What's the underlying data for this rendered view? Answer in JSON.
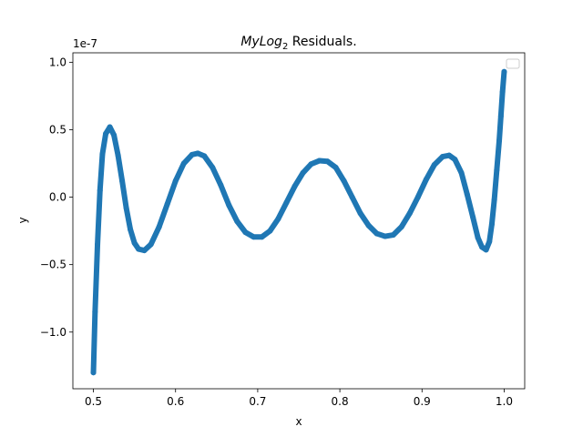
{
  "chart_data": {
    "type": "scatter",
    "title": {
      "italic": "MyLog",
      "subscript": "2",
      "rest": " Residuals."
    },
    "xlabel": "x",
    "ylabel": "y",
    "offset_text": "1e-7",
    "xlim": [
      0.475,
      1.025
    ],
    "ylim": [
      -1.42,
      1.07
    ],
    "y_scale_factor": 1e-07,
    "x_ticks": [
      {
        "value": 0.5,
        "label": "0.5"
      },
      {
        "value": 0.6,
        "label": "0.6"
      },
      {
        "value": 0.7,
        "label": "0.7"
      },
      {
        "value": 0.8,
        "label": "0.8"
      },
      {
        "value": 0.9,
        "label": "0.9"
      },
      {
        "value": 1.0,
        "label": "1.0"
      }
    ],
    "y_ticks": [
      {
        "value": -1.0,
        "label": "−1.0"
      },
      {
        "value": -0.5,
        "label": "−0.5"
      },
      {
        "value": 0.0,
        "label": "0.0"
      },
      {
        "value": 0.5,
        "label": "0.5"
      },
      {
        "value": 1.0,
        "label": "1.0"
      }
    ],
    "grid": false,
    "legend": {
      "placement": "top-right",
      "entries": []
    },
    "series": [
      {
        "color": "#1f77b4",
        "x": [
          0.5,
          0.502,
          0.505,
          0.508,
          0.511,
          0.515,
          0.52,
          0.525,
          0.53,
          0.535,
          0.54,
          0.545,
          0.55,
          0.555,
          0.562,
          0.57,
          0.58,
          0.59,
          0.6,
          0.61,
          0.62,
          0.627,
          0.635,
          0.645,
          0.655,
          0.665,
          0.675,
          0.685,
          0.695,
          0.705,
          0.715,
          0.725,
          0.735,
          0.745,
          0.755,
          0.765,
          0.775,
          0.785,
          0.795,
          0.805,
          0.815,
          0.825,
          0.835,
          0.845,
          0.855,
          0.865,
          0.875,
          0.885,
          0.895,
          0.905,
          0.915,
          0.925,
          0.933,
          0.94,
          0.948,
          0.955,
          0.962,
          0.968,
          0.973,
          0.978,
          0.982,
          0.985,
          0.988,
          0.991,
          0.994,
          0.996,
          0.998,
          1.0
        ],
        "y": [
          -1.3,
          -0.85,
          -0.35,
          0.05,
          0.32,
          0.47,
          0.52,
          0.46,
          0.31,
          0.12,
          -0.08,
          -0.24,
          -0.34,
          -0.385,
          -0.395,
          -0.35,
          -0.22,
          -0.05,
          0.12,
          0.25,
          0.315,
          0.325,
          0.305,
          0.22,
          0.09,
          -0.06,
          -0.18,
          -0.26,
          -0.295,
          -0.295,
          -0.25,
          -0.16,
          -0.04,
          0.08,
          0.18,
          0.245,
          0.27,
          0.265,
          0.22,
          0.12,
          0.0,
          -0.12,
          -0.21,
          -0.27,
          -0.29,
          -0.28,
          -0.22,
          -0.12,
          0.0,
          0.13,
          0.24,
          0.3,
          0.31,
          0.28,
          0.18,
          0.02,
          -0.15,
          -0.3,
          -0.37,
          -0.39,
          -0.33,
          -0.2,
          -0.02,
          0.2,
          0.42,
          0.6,
          0.78,
          0.93
        ]
      }
    ]
  }
}
